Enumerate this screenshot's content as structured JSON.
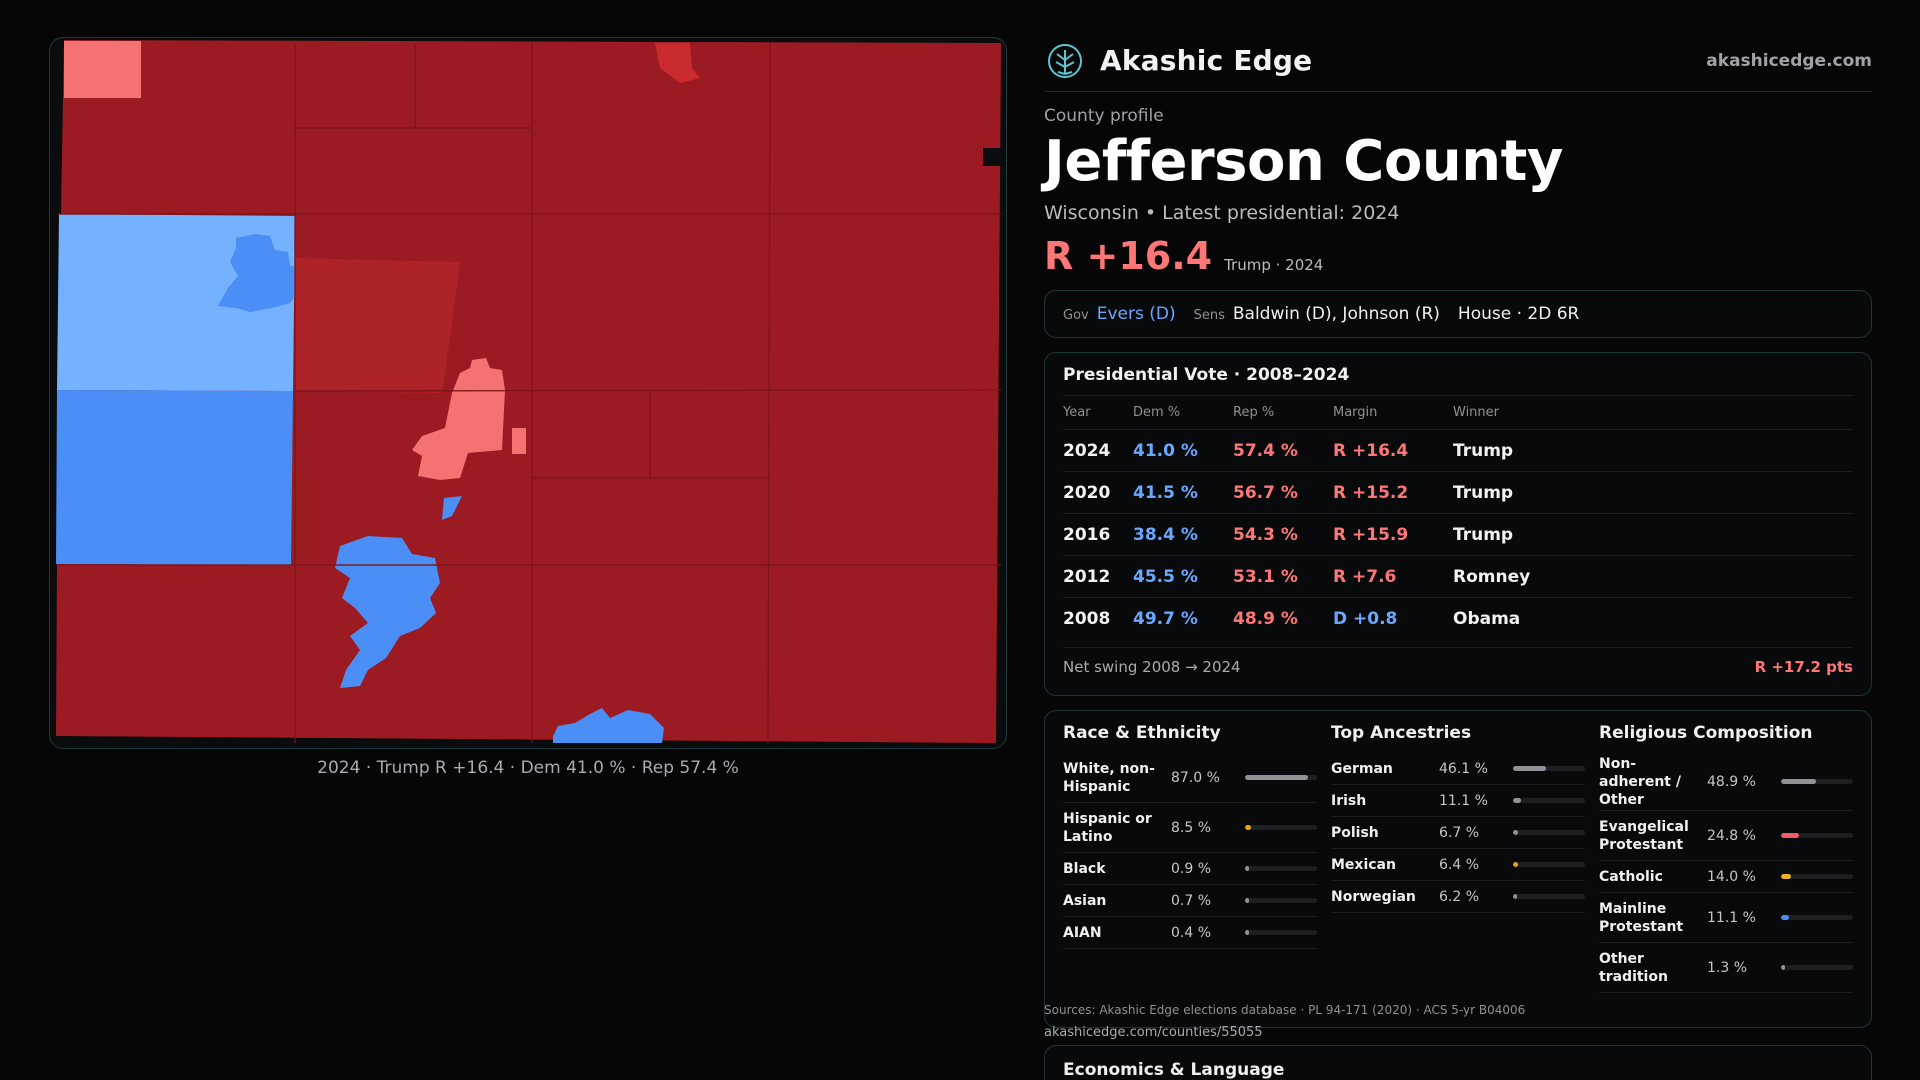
{
  "brand": {
    "name": "Akashic Edge",
    "url": "akashicedge.com",
    "logo": "tree-globe-icon"
  },
  "map": {
    "caption": "2024 · Trump R +16.4 · Dem 41.0 % · Rep 57.4 %",
    "colors": {
      "strong_rep": "#9c1b22",
      "rep": "#ad2327",
      "lean_rep": "#f47272",
      "lean_dem": "#74b1ff",
      "dem": "#4b8ef5",
      "background": "#0b0c0e"
    }
  },
  "profile": {
    "label": "County profile",
    "title": "Jefferson County",
    "subtitle": "Wisconsin • Latest presidential: 2024",
    "margin": "R +16.4",
    "margin_note": "Trump · 2024"
  },
  "officials": {
    "gov_label": "Gov",
    "gov": "Evers (D)",
    "sens_label": "Sens",
    "sens": "Baldwin (D), Johnson (R)",
    "house": "House · 2D 6R"
  },
  "presidential": {
    "title": "Presidential Vote · 2008–2024",
    "headers": {
      "year": "Year",
      "dem": "Dem %",
      "rep": "Rep %",
      "margin": "Margin",
      "winner": "Winner"
    },
    "rows": [
      {
        "year": "2024",
        "dem": "41.0 %",
        "rep": "57.4 %",
        "margin": "R +16.4",
        "party": "R",
        "winner": "Trump"
      },
      {
        "year": "2020",
        "dem": "41.5 %",
        "rep": "56.7 %",
        "margin": "R +15.2",
        "party": "R",
        "winner": "Trump"
      },
      {
        "year": "2016",
        "dem": "38.4 %",
        "rep": "54.3 %",
        "margin": "R +15.9",
        "party": "R",
        "winner": "Trump"
      },
      {
        "year": "2012",
        "dem": "45.5 %",
        "rep": "53.1 %",
        "margin": "R +7.6",
        "party": "R",
        "winner": "Romney"
      },
      {
        "year": "2008",
        "dem": "49.7 %",
        "rep": "48.9 %",
        "margin": "D +0.8",
        "party": "D",
        "winner": "Obama"
      }
    ],
    "swing_label": "Net swing 2008 → 2024",
    "swing_value": "R +17.2 pts"
  },
  "race": {
    "title": "Race & Ethnicity",
    "items": [
      {
        "label": "White, non-Hispanic",
        "value": "87.0 %",
        "pct": 87.0,
        "color": "#8f9298"
      },
      {
        "label": "Hispanic or Latino",
        "value": "8.5 %",
        "pct": 8.5,
        "color": "#e8a317"
      },
      {
        "label": "Black",
        "value": "0.9 %",
        "pct": 0.9,
        "color": "#8f9298"
      },
      {
        "label": "Asian",
        "value": "0.7 %",
        "pct": 0.7,
        "color": "#8f9298"
      },
      {
        "label": "AIAN",
        "value": "0.4 %",
        "pct": 0.4,
        "color": "#8f9298"
      }
    ]
  },
  "ancestry": {
    "title": "Top Ancestries",
    "items": [
      {
        "label": "German",
        "value": "46.1 %",
        "pct": 46.1,
        "color": "#8f9298"
      },
      {
        "label": "Irish",
        "value": "11.1 %",
        "pct": 11.1,
        "color": "#8f9298"
      },
      {
        "label": "Polish",
        "value": "6.7 %",
        "pct": 6.7,
        "color": "#8f9298"
      },
      {
        "label": "Mexican",
        "value": "6.4 %",
        "pct": 6.4,
        "color": "#e8a317"
      },
      {
        "label": "Norwegian",
        "value": "6.2 %",
        "pct": 6.2,
        "color": "#8f9298"
      }
    ]
  },
  "religion": {
    "title": "Religious Composition",
    "items": [
      {
        "label": "Non-adherent / Other",
        "value": "48.9 %",
        "pct": 48.9,
        "color": "#8f9298"
      },
      {
        "label": "Evangelical Protestant",
        "value": "24.8 %",
        "pct": 24.8,
        "color": "#f25a66"
      },
      {
        "label": "Catholic",
        "value": "14.0 %",
        "pct": 14.0,
        "color": "#e8b020"
      },
      {
        "label": "Mainline Protestant",
        "value": "11.1 %",
        "pct": 11.1,
        "color": "#4b8ef5"
      },
      {
        "label": "Other tradition",
        "value": "1.3 %",
        "pct": 1.3,
        "color": "#8f9298"
      }
    ]
  },
  "sources": {
    "text": "Sources: Akashic Edge elections database · PL 94-171 (2020) · ACS 5-yr B04006",
    "url": "akashicedge.com/counties/55055"
  },
  "economics": {
    "title": "Economics & Language"
  }
}
